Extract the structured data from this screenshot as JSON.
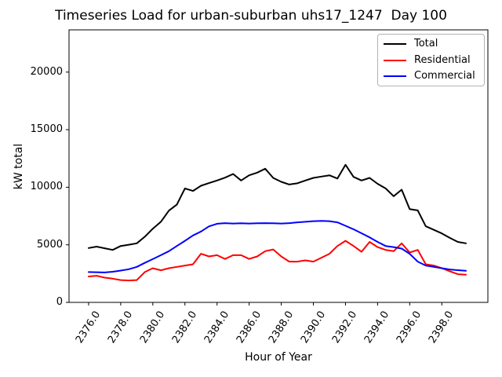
{
  "chart_data": {
    "type": "line",
    "title": "Timeseries Load for urban-suburban uhs17_1247  Day 100",
    "xlabel": "Hour of Year",
    "ylabel": "kW total",
    "grid": false,
    "legend_position": "upper right",
    "xlim": [
      2374.78,
      2400.87
    ],
    "ylim": [
      0,
      23670
    ],
    "xticks": [
      {
        "value": 2376,
        "label": "2376.0"
      },
      {
        "value": 2378,
        "label": "2378.0"
      },
      {
        "value": 2380,
        "label": "2380.0"
      },
      {
        "value": 2382,
        "label": "2382.0"
      },
      {
        "value": 2384,
        "label": "2384.0"
      },
      {
        "value": 2386,
        "label": "2386.0"
      },
      {
        "value": 2388,
        "label": "2388.0"
      },
      {
        "value": 2390,
        "label": "2390.0"
      },
      {
        "value": 2392,
        "label": "2392.0"
      },
      {
        "value": 2394,
        "label": "2394.0"
      },
      {
        "value": 2396,
        "label": "2396.0"
      },
      {
        "value": 2398,
        "label": "2398.0"
      }
    ],
    "yticks": [
      {
        "value": 0,
        "label": "0"
      },
      {
        "value": 5000,
        "label": "5000"
      },
      {
        "value": 10000,
        "label": "10000"
      },
      {
        "value": 15000,
        "label": "15000"
      },
      {
        "value": 20000,
        "label": "20000"
      }
    ],
    "x": [
      2376.0,
      2376.5,
      2377.0,
      2377.5,
      2378.0,
      2378.5,
      2379.0,
      2379.5,
      2380.0,
      2380.5,
      2381.0,
      2381.5,
      2382.0,
      2382.5,
      2383.0,
      2383.5,
      2384.0,
      2384.5,
      2385.0,
      2385.5,
      2386.0,
      2386.5,
      2387.0,
      2387.5,
      2388.0,
      2388.5,
      2389.0,
      2389.5,
      2390.0,
      2390.5,
      2391.0,
      2391.5,
      2392.0,
      2392.5,
      2393.0,
      2393.5,
      2394.0,
      2394.5,
      2395.0,
      2395.5,
      2396.0,
      2396.5,
      2397.0,
      2397.5,
      2398.0,
      2398.5,
      2399.0,
      2399.5
    ],
    "series": [
      {
        "name": "Total",
        "color": "#000000",
        "values": [
          4720,
          4840,
          4700,
          4560,
          4900,
          5010,
          5130,
          5700,
          6400,
          7000,
          7970,
          8500,
          9900,
          9680,
          10130,
          10360,
          10590,
          10830,
          11150,
          10590,
          11040,
          11270,
          11610,
          10810,
          10470,
          10240,
          10340,
          10590,
          10810,
          10930,
          11040,
          10760,
          11950,
          10900,
          10590,
          10810,
          10300,
          9900,
          9220,
          9790,
          8100,
          7990,
          6610,
          6300,
          5990,
          5600,
          5250,
          5130
        ]
      },
      {
        "name": "Residential",
        "color": "#ff0000",
        "values": [
          2250,
          2310,
          2150,
          2060,
          1940,
          1900,
          1940,
          2630,
          2970,
          2790,
          2970,
          3080,
          3200,
          3310,
          4220,
          3990,
          4100,
          3770,
          4100,
          4100,
          3770,
          3990,
          4450,
          4600,
          3990,
          3540,
          3540,
          3650,
          3540,
          3880,
          4220,
          4900,
          5350,
          4900,
          4390,
          5250,
          4800,
          4560,
          4450,
          5130,
          4330,
          4560,
          3310,
          3200,
          2970,
          2700,
          2450,
          2400
        ]
      },
      {
        "name": "Commercial",
        "color": "#0000ff",
        "values": [
          2630,
          2620,
          2600,
          2660,
          2760,
          2880,
          3080,
          3430,
          3760,
          4100,
          4450,
          4900,
          5350,
          5810,
          6150,
          6600,
          6830,
          6880,
          6850,
          6870,
          6850,
          6870,
          6880,
          6870,
          6850,
          6880,
          6950,
          7000,
          7050,
          7080,
          7050,
          6950,
          6650,
          6350,
          6000,
          5650,
          5250,
          4900,
          4800,
          4670,
          4220,
          3540,
          3200,
          3080,
          2970,
          2860,
          2800,
          2740
        ]
      }
    ]
  }
}
